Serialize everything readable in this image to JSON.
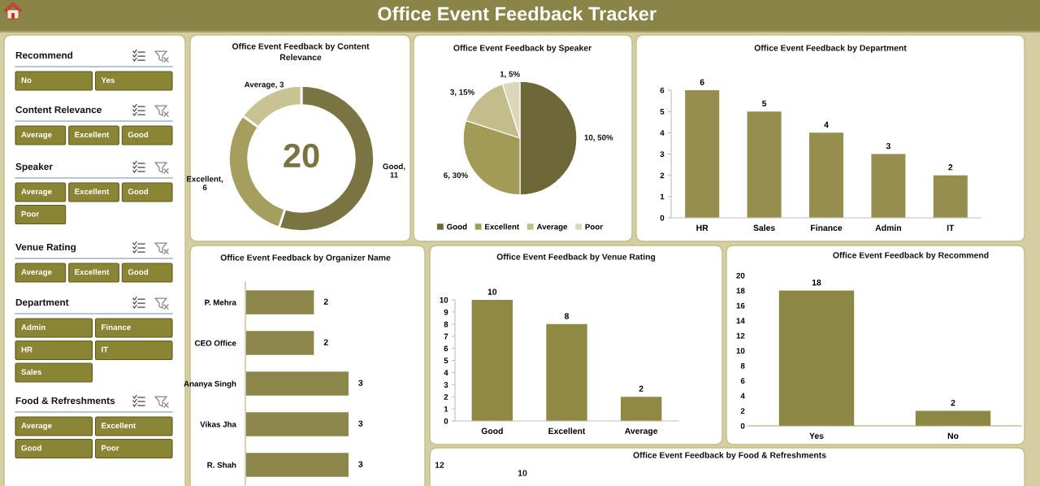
{
  "chart_data": [
    {
      "type": "other",
      "title": "Office Event Feedback Tracker"
    },
    {
      "type": "other",
      "title": "Recommend",
      "categories": [
        "No",
        "Yes"
      ]
    },
    {
      "type": "other",
      "title": "Content Relevance",
      "categories": [
        "Average",
        "Excellent",
        "Good"
      ]
    },
    {
      "type": "other",
      "title": "Speaker",
      "categories": [
        "Average",
        "Excellent",
        "Good",
        "Poor"
      ]
    },
    {
      "type": "other",
      "title": "Venue Rating",
      "categories": [
        "Average",
        "Excellent",
        "Good"
      ]
    },
    {
      "type": "other",
      "title": "Department",
      "categories": [
        "Admin",
        "Finance",
        "HR",
        "IT",
        "Sales"
      ]
    },
    {
      "type": "other",
      "title": "Food & Refreshments",
      "categories": [
        "Average",
        "Excellent",
        "Good",
        "Poor"
      ]
    },
    {
      "type": "donut",
      "title": "Office Event Feedback by Content Relevance",
      "categories": [
        null,
        null,
        null
      ],
      "values": [
        11,
        6,
        3
      ],
      "colors": [
        "#7a7442",
        "#a59e5e",
        "#c9c393"
      ],
      "value_labels": [
        "Good, 11",
        "Excellent, 6",
        "Average, 3"
      ],
      "annotations": [
        "20"
      ]
    },
    {
      "type": "pie",
      "title": "Office Event Feedback by Speaker",
      "categories": [
        "Good",
        "Excellent",
        "Average",
        "Poor"
      ],
      "values": [
        10,
        6,
        3,
        1
      ],
      "colors": [
        "#6e6838",
        "#a29b57",
        "#c3bd8c",
        "#dcd7ba"
      ],
      "value_labels": [
        "10, 50%",
        "6, 30%",
        "3, 15%",
        "1, 5%"
      ],
      "legend": "bottom"
    },
    {
      "type": "bar",
      "title": "Office Event Feedback by Department",
      "categories": [
        "HR",
        "Sales",
        "Finance",
        "Admin",
        "IT"
      ],
      "values": [
        6,
        5,
        4,
        3,
        2
      ],
      "color": "#958e4e",
      "ylim": [
        0,
        6
      ],
      "yticks": [
        0,
        1,
        2,
        3,
        4,
        5,
        6
      ],
      "data_labels": true
    },
    {
      "type": "bar",
      "orientation": "horizontal",
      "title": "Office Event Feedback by Organizer Name",
      "categories": [
        "P. Mehra",
        "CEO Office",
        "Ananya Singh",
        "Vikas Jha",
        "R. Shah"
      ],
      "values": [
        2,
        2,
        3,
        3,
        3
      ],
      "color": "#8c864a",
      "data_labels": true,
      "tick_labels": "y"
    },
    {
      "type": "bar",
      "title": "Office Event Feedback by Venue Rating",
      "categories": [
        "Good",
        "Excellent",
        "Average"
      ],
      "values": [
        10,
        8,
        2
      ],
      "color": "#8f8944",
      "ylim": [
        0,
        10
      ],
      "yticks": [
        0,
        1,
        2,
        3,
        4,
        5,
        6,
        7,
        8,
        9,
        10
      ],
      "data_labels": true
    },
    {
      "type": "bar",
      "title": "Office Event Feedback by Recommend",
      "categories": [
        "Yes",
        "No"
      ],
      "values": [
        18,
        2
      ],
      "color": "#8d8745",
      "ylim": [
        0,
        20
      ],
      "yticks": [
        0,
        2,
        4,
        6,
        8,
        10,
        12,
        14,
        16,
        18,
        20
      ],
      "data_labels": true
    },
    {
      "type": "other",
      "title": "Office Event Feedback by Food & Refreshments",
      "annotations": [
        "12",
        "10"
      ]
    }
  ]
}
